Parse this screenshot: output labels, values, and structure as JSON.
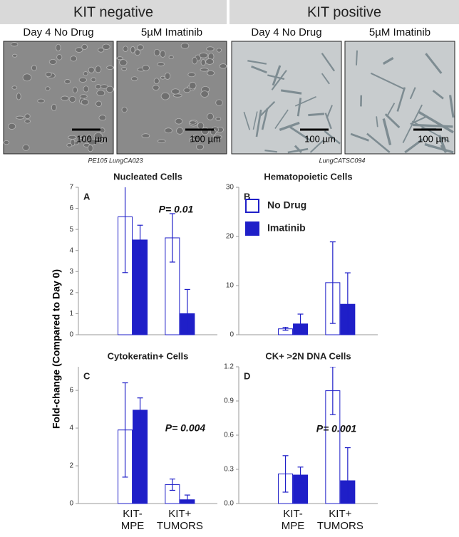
{
  "header": {
    "groups": [
      {
        "title": "KIT negative",
        "caption": "PE105 LungCA023",
        "panels": [
          {
            "label": "Day 4 No Drug",
            "scale_bar": "100 µm"
          },
          {
            "label": "5µM Imatinib",
            "scale_bar": "100 µm"
          }
        ]
      },
      {
        "title": "KIT positive",
        "caption": "LungCATSC094",
        "panels": [
          {
            "label": "Day 4 No Drug",
            "scale_bar": "100 µm"
          },
          {
            "label": "5µM Imatinib",
            "scale_bar": "100 µm"
          }
        ]
      }
    ]
  },
  "shared_ylabel": "Fold-change (Compared to Day 0)",
  "chart_data": [
    {
      "type": "bar",
      "title": "Nucleated Cells",
      "panel_label": "A",
      "annotation": "P= 0.01",
      "categories": [
        null,
        null
      ],
      "ylim": [
        0,
        7
      ],
      "yticks": [
        0,
        1,
        2,
        3,
        4,
        5,
        6,
        7
      ],
      "series": [
        {
          "color": "#1f1fc8",
          "filled": false,
          "values": [
            5.6,
            4.6
          ],
          "errors": [
            2.65,
            1.15
          ]
        },
        {
          "color": "#1f1fc8",
          "filled": true,
          "values": [
            4.5,
            1.0
          ],
          "errors": [
            0.7,
            1.15
          ]
        }
      ]
    },
    {
      "type": "bar",
      "title": "Hematopoietic Cells",
      "panel_label": "B",
      "legend": "upper left",
      "categories": [
        null,
        null
      ],
      "ylim": [
        0,
        30
      ],
      "yticks": [
        0,
        10,
        20,
        30
      ],
      "series": [
        {
          "name": "No Drug",
          "color": "#1f1fc8",
          "filled": false,
          "values": [
            1.2,
            10.6
          ],
          "errors": [
            0.3,
            8.3
          ]
        },
        {
          "name": "Imatinib",
          "color": "#1f1fc8",
          "filled": true,
          "values": [
            2.2,
            6.2
          ],
          "errors": [
            2.0,
            6.4
          ]
        }
      ]
    },
    {
      "type": "bar",
      "title": "Cytokeratin+ Cells",
      "panel_label": "C",
      "annotation": "P= 0.004",
      "categories": [
        "KIT-\nMPE",
        "KIT+\nTUMORS"
      ],
      "ylim": [
        0,
        7.25
      ],
      "yticks": [
        0,
        2,
        4,
        6
      ],
      "series": [
        {
          "color": "#1f1fc8",
          "filled": false,
          "values": [
            3.9,
            1.0
          ],
          "errors": [
            2.5,
            0.3
          ]
        },
        {
          "color": "#1f1fc8",
          "filled": true,
          "values": [
            4.95,
            0.2
          ],
          "errors": [
            0.65,
            0.25
          ]
        }
      ]
    },
    {
      "type": "bar",
      "title": "CK+ >2N DNA Cells",
      "panel_label": "D",
      "annotation": "P= 0.001",
      "categories": [
        "KIT-\nMPE",
        "KIT+\nTUMORS"
      ],
      "ylim": [
        0,
        1.2
      ],
      "yticks": [
        {
          "value": 0,
          "label": "0.0"
        },
        0.3,
        0.6,
        0.9,
        1.2
      ],
      "series": [
        {
          "color": "#1f1fc8",
          "filled": false,
          "values": [
            0.26,
            0.99
          ],
          "errors": [
            0.16,
            0.21
          ]
        },
        {
          "color": "#1f1fc8",
          "filled": true,
          "values": [
            0.25,
            0.2
          ],
          "errors": [
            0.07,
            0.29
          ]
        }
      ]
    }
  ]
}
